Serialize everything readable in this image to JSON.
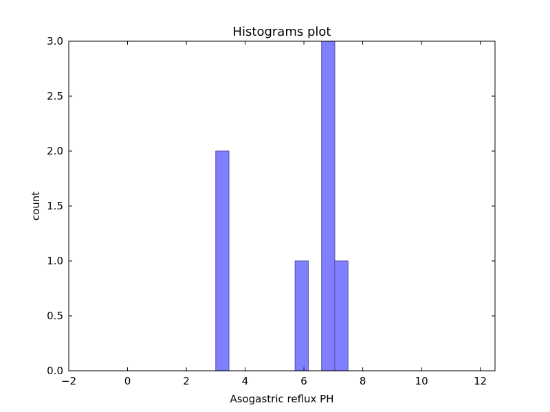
{
  "chart_data": {
    "type": "bar",
    "title": "Histograms plot",
    "xlabel": "Asogastric reflux PH",
    "ylabel": "count",
    "xlim": [
      -2,
      12.5
    ],
    "ylim": [
      0,
      3.0
    ],
    "xticks": [
      -2,
      0,
      2,
      4,
      6,
      8,
      10,
      12
    ],
    "xtick_labels": [
      "−2",
      "0",
      "2",
      "4",
      "6",
      "8",
      "10",
      "12"
    ],
    "yticks": [
      0,
      0.5,
      1.0,
      1.5,
      2.0,
      2.5,
      3.0
    ],
    "ytick_labels": [
      "0.0",
      "0.5",
      "1.0",
      "1.5",
      "2.0",
      "2.5",
      "3.0"
    ],
    "bins": [
      {
        "x0": 3.0,
        "x1": 3.45,
        "count": 2
      },
      {
        "x0": 5.7,
        "x1": 6.15,
        "count": 1
      },
      {
        "x0": 6.6,
        "x1": 7.05,
        "count": 3
      },
      {
        "x0": 7.05,
        "x1": 7.5,
        "count": 1
      }
    ],
    "bar_color": "#8080ff",
    "bar_edge_color": "#4d4da6",
    "grid": false
  }
}
